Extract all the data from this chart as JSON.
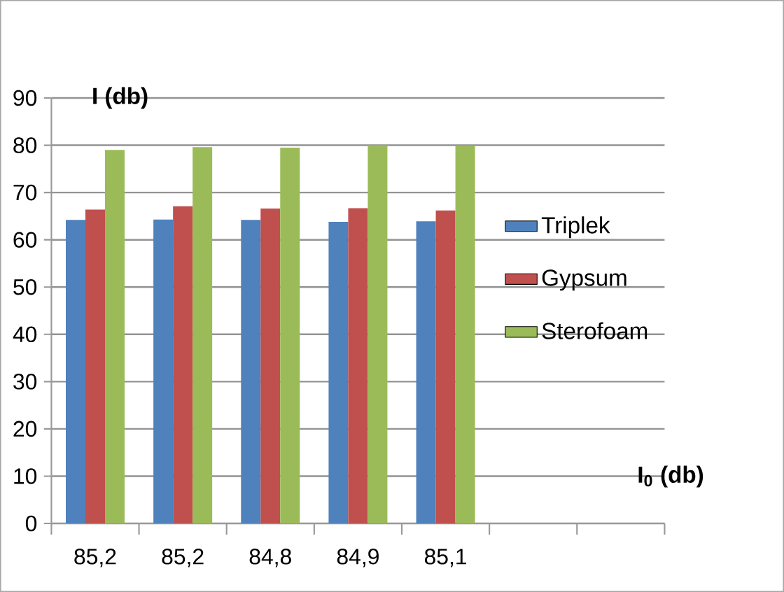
{
  "chart_data": {
    "type": "bar",
    "ylabel": "I (db)",
    "xlabel": "I$_{0}$ (db)",
    "categories": [
      "85,2",
      "85,2",
      "84,8",
      "84,9",
      "85,1",
      null,
      null
    ],
    "series": [
      {
        "name": "Triplek",
        "color": "#4f81bd",
        "values": [
          64.2,
          64.3,
          64.2,
          63.8,
          63.9,
          null,
          null
        ]
      },
      {
        "name": "Gypsum",
        "color": "#c0504d",
        "values": [
          66.4,
          67.1,
          66.6,
          66.7,
          66.2,
          null,
          null
        ]
      },
      {
        "name": "Sterofoam",
        "color": "#9bbb59",
        "values": [
          79.0,
          79.6,
          79.5,
          80.0,
          79.9,
          null,
          null
        ]
      }
    ],
    "ylim": [
      0,
      90
    ],
    "yticks": [
      0,
      10,
      20,
      30,
      40,
      50,
      60,
      70,
      80,
      90
    ],
    "grid": "y",
    "legend": "right"
  }
}
